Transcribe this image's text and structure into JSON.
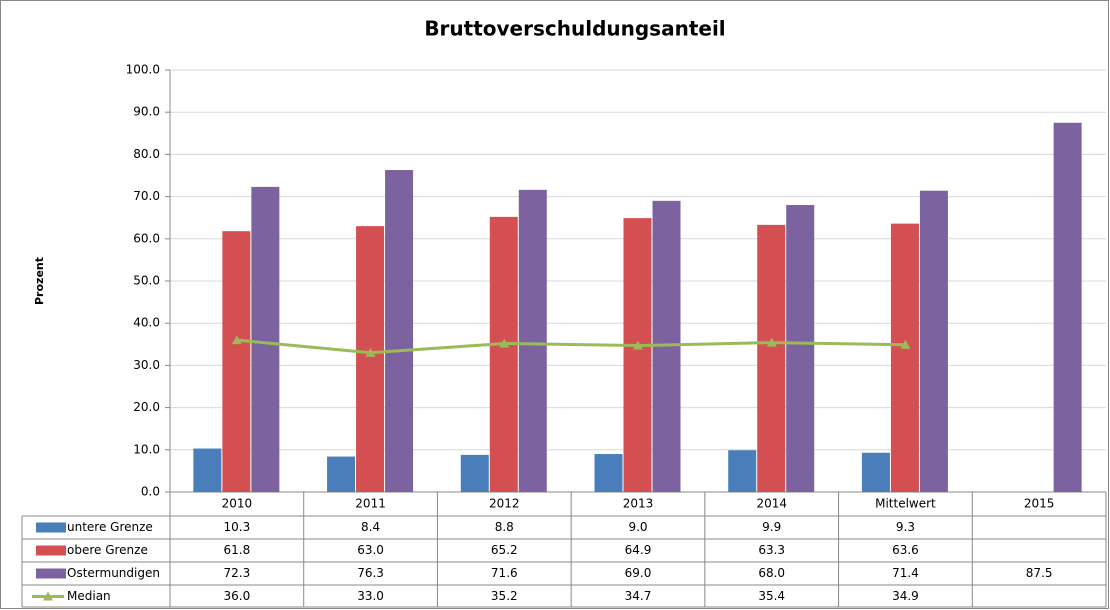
{
  "chart_data": {
    "type": "bar",
    "title": "Bruttoverschuldungsanteil",
    "y_label": "Prozent",
    "categories": [
      "2010",
      "2011",
      "2012",
      "2013",
      "2014",
      "Mittelwert",
      "2015"
    ],
    "ylim": [
      0,
      100
    ],
    "yticks": [
      {
        "value": 0,
        "label": "0.0"
      },
      {
        "value": 10,
        "label": "10.0"
      },
      {
        "value": 20,
        "label": "20.0"
      },
      {
        "value": 30,
        "label": "30.0"
      },
      {
        "value": 40,
        "label": "40.0"
      },
      {
        "value": 50,
        "label": "50.0"
      },
      {
        "value": 60,
        "label": "60.0"
      },
      {
        "value": 70,
        "label": "70.0"
      },
      {
        "value": 80,
        "label": "80.0"
      },
      {
        "value": 90,
        "label": "90.0"
      },
      {
        "value": 100,
        "label": "100.0"
      }
    ],
    "grid": true,
    "series": [
      {
        "name": "untere Grenze",
        "type": "bar",
        "color": "#4a7ebb",
        "values": [
          10.3,
          8.4,
          8.8,
          9.0,
          9.9,
          9.3,
          null
        ],
        "value_labels": [
          "10.3",
          "8.4",
          "8.8",
          "9.0",
          "9.9",
          "9.3",
          null
        ]
      },
      {
        "name": "obere Grenze",
        "type": "bar",
        "color": "#d44f51",
        "values": [
          61.8,
          63.0,
          65.2,
          64.9,
          63.3,
          63.6,
          null
        ],
        "value_labels": [
          "61.8",
          "63.0",
          "65.2",
          "64.9",
          "63.3",
          "63.6",
          null
        ]
      },
      {
        "name": "Ostermundigen",
        "type": "bar",
        "color": "#7d62a0",
        "values": [
          72.3,
          76.3,
          71.6,
          69.0,
          68.0,
          71.4,
          87.5
        ],
        "value_labels": [
          "72.3",
          "76.3",
          "71.6",
          "69.0",
          "68.0",
          "71.4",
          "87.5"
        ]
      },
      {
        "name": "Median",
        "type": "line",
        "color": "#9bbb59",
        "values": [
          36.0,
          33.0,
          35.2,
          34.7,
          35.4,
          34.9,
          null
        ],
        "value_labels": [
          "36.0",
          "33.0",
          "35.2",
          "34.7",
          "35.4",
          "34.9",
          null
        ]
      }
    ]
  }
}
